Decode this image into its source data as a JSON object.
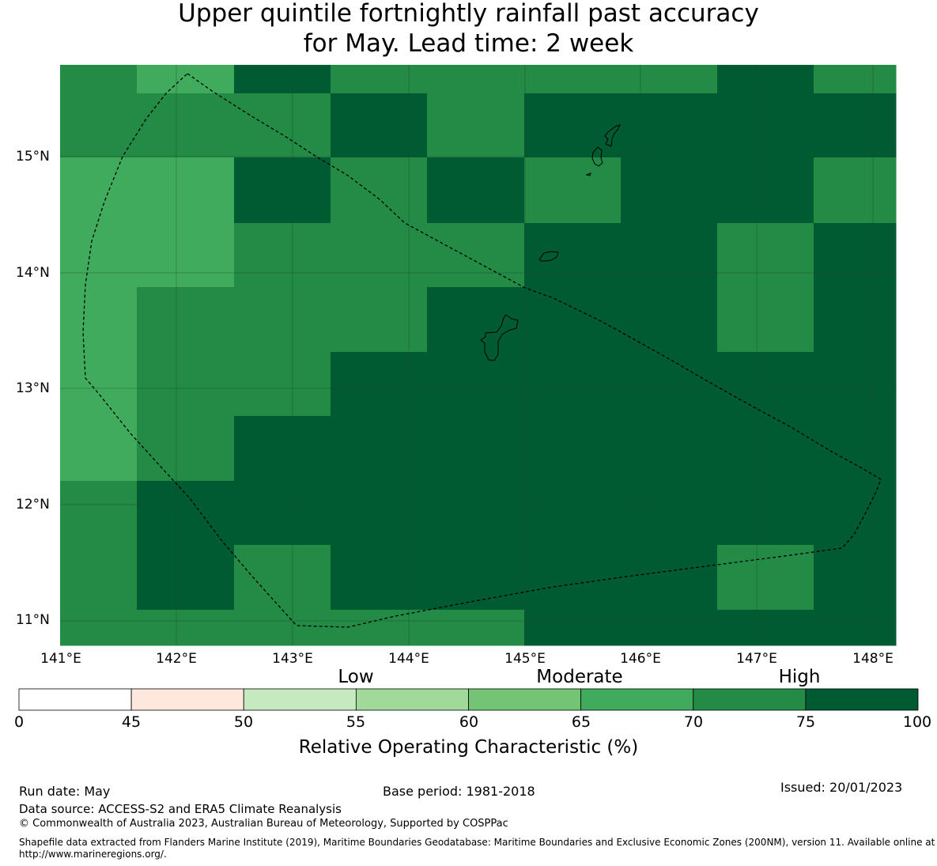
{
  "title_line1": "Upper quintile fortnightly rainfall past accuracy",
  "title_line2": "for May. Lead time: 2 week",
  "map": {
    "lon_range": [
      141.0,
      148.2
    ],
    "lat_range": [
      10.8,
      15.8
    ],
    "lat_ticks": [
      "15°N",
      "14°N",
      "13°N",
      "12°N",
      "11°N"
    ],
    "lon_ticks": [
      "141°E",
      "142°E",
      "143°E",
      "144°E",
      "145°E",
      "146°E",
      "147°E",
      "148°E"
    ],
    "colors": {
      "c65_70": "#41ab5d",
      "c70_75": "#238b45",
      "c75_100": "#005a32",
      "gridline": "#1f4a2a",
      "eez_line": "#000000",
      "island_outline": "#000000"
    },
    "grid_cells_roc_class": [
      [
        "70-75",
        "65-70",
        "75-100",
        "70-75",
        "70-75",
        "70-75",
        "70-75",
        "75-100",
        "70-75"
      ],
      [
        "70-75",
        "70-75",
        "70-75",
        "75-100",
        "70-75",
        "75-100",
        "75-100",
        "75-100",
        "75-100"
      ],
      [
        "65-70",
        "65-70",
        "75-100",
        "70-75",
        "75-100",
        "70-75",
        "75-100",
        "75-100",
        "70-75"
      ],
      [
        "65-70",
        "65-70",
        "70-75",
        "70-75",
        "70-75",
        "75-100",
        "75-100",
        "70-75",
        "75-100"
      ],
      [
        "65-70",
        "70-75",
        "70-75",
        "70-75",
        "75-100",
        "75-100",
        "75-100",
        "70-75",
        "75-100"
      ],
      [
        "65-70",
        "70-75",
        "70-75",
        "75-100",
        "75-100",
        "75-100",
        "75-100",
        "75-100",
        "75-100"
      ],
      [
        "65-70",
        "70-75",
        "75-100",
        "75-100",
        "75-100",
        "75-100",
        "75-100",
        "75-100",
        "75-100"
      ],
      [
        "70-75",
        "75-100",
        "75-100",
        "75-100",
        "75-100",
        "75-100",
        "75-100",
        "75-100",
        "75-100"
      ],
      [
        "70-75",
        "75-100",
        "70-75",
        "75-100",
        "75-100",
        "75-100",
        "75-100",
        "70-75",
        "75-100"
      ],
      [
        "70-75",
        "70-75",
        "70-75",
        "70-75",
        "70-75",
        "75-100",
        "75-100",
        "75-100",
        "75-100"
      ]
    ]
  },
  "colorbar": {
    "category_labels": [
      "Low",
      "Moderate",
      "High"
    ],
    "tick_labels": [
      "0",
      "45",
      "50",
      "55",
      "60",
      "65",
      "70",
      "75",
      "100"
    ],
    "bins": [
      {
        "from": 0,
        "to": 45,
        "color": "#ffffff"
      },
      {
        "from": 45,
        "to": 50,
        "color": "#fee8dd"
      },
      {
        "from": 50,
        "to": 55,
        "color": "#c7e9c0"
      },
      {
        "from": 55,
        "to": 60,
        "color": "#a1d99b"
      },
      {
        "from": 60,
        "to": 65,
        "color": "#74c476"
      },
      {
        "from": 65,
        "to": 70,
        "color": "#41ab5d"
      },
      {
        "from": 70,
        "to": 75,
        "color": "#238b45"
      },
      {
        "from": 75,
        "to": 100,
        "color": "#005a32"
      }
    ],
    "title": "Relative Operating Characteristic (%)"
  },
  "footer": {
    "run_date": "Run date: May",
    "base_period": "Base period: 1981-2018",
    "issued": "Issued: 20/01/2023",
    "data_source": "Data source: ACCESS-S2 and ERA5 Climate Reanalysis",
    "copyright": "© Commonwealth of Australia 2023, Australian Bureau of Meteorology, Supported by COSPPac",
    "shapefile": "Shapefile data extracted from Flanders Marine Institute (2019), Maritime Boundaries Geodatabase: Maritime Boundaries and Exclusive Economic Zones (200NM), version 11. Available online at http://www.marineregions.org/."
  }
}
